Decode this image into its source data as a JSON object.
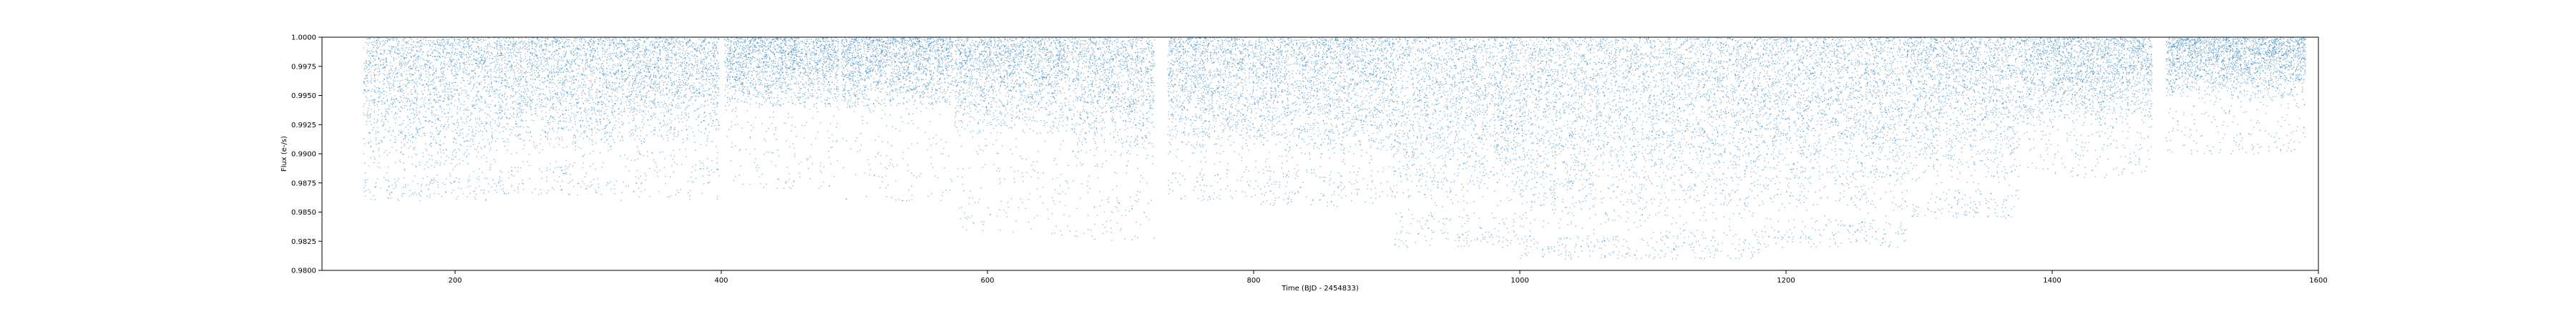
{
  "chart_data": {
    "type": "scatter",
    "title": "",
    "xlabel": "Time (BJD - 2454833)",
    "ylabel": "Flux (e-/s)",
    "xlim": [
      100,
      1600
    ],
    "ylim": [
      0.98,
      1.0
    ],
    "x_ticks": [
      200,
      400,
      600,
      800,
      1000,
      1200,
      1400,
      1600
    ],
    "x_tick_labels": [
      "200",
      "400",
      "600",
      "800",
      "1000",
      "1200",
      "1400",
      "1600"
    ],
    "y_ticks": [
      0.98,
      0.9825,
      0.985,
      0.9875,
      0.99,
      0.9925,
      0.995,
      0.9975,
      1.0
    ],
    "y_tick_labels": [
      "0.9800",
      "0.9825",
      "0.9850",
      "0.9875",
      "0.9900",
      "0.9925",
      "0.9950",
      "0.9975",
      "1.0000"
    ],
    "grid": false,
    "point_color": "#1f77b4",
    "series": [
      {
        "segments": [
          {
            "x_start": 131,
            "x_end": 228,
            "lower_flux": 0.988,
            "scatter_min": 0.986
          },
          {
            "x_start": 229,
            "x_end": 320,
            "lower_flux": 0.9895,
            "scatter_min": 0.9865
          },
          {
            "x_start": 320,
            "x_end": 398,
            "lower_flux": 0.9905,
            "scatter_min": 0.986
          },
          {
            "x_start": 402,
            "x_end": 488,
            "lower_flux": 0.9935,
            "scatter_min": 0.987
          },
          {
            "x_start": 490,
            "x_end": 574,
            "lower_flux": 0.9935,
            "scatter_min": 0.986
          },
          {
            "x_start": 575,
            "x_end": 662,
            "lower_flux": 0.9915,
            "scatter_min": 0.983
          },
          {
            "x_start": 663,
            "x_end": 725,
            "lower_flux": 0.9895,
            "scatter_min": 0.9825
          },
          {
            "x_start": 735,
            "x_end": 805,
            "lower_flux": 0.9895,
            "scatter_min": 0.986
          },
          {
            "x_start": 805,
            "x_end": 905,
            "lower_flux": 0.989,
            "scatter_min": 0.9855
          },
          {
            "x_start": 905,
            "x_end": 1000,
            "lower_flux": 0.985,
            "scatter_min": 0.982
          },
          {
            "x_start": 1000,
            "x_end": 1100,
            "lower_flux": 0.983,
            "scatter_min": 0.981
          },
          {
            "x_start": 1100,
            "x_end": 1180,
            "lower_flux": 0.9835,
            "scatter_min": 0.981
          },
          {
            "x_start": 1180,
            "x_end": 1290,
            "lower_flux": 0.9845,
            "scatter_min": 0.982
          },
          {
            "x_start": 1290,
            "x_end": 1375,
            "lower_flux": 0.987,
            "scatter_min": 0.9845
          },
          {
            "x_start": 1375,
            "x_end": 1475,
            "lower_flux": 0.992,
            "scatter_min": 0.988
          },
          {
            "x_start": 1485,
            "x_end": 1590,
            "lower_flux": 0.9945,
            "scatter_min": 0.99
          }
        ]
      }
    ]
  }
}
